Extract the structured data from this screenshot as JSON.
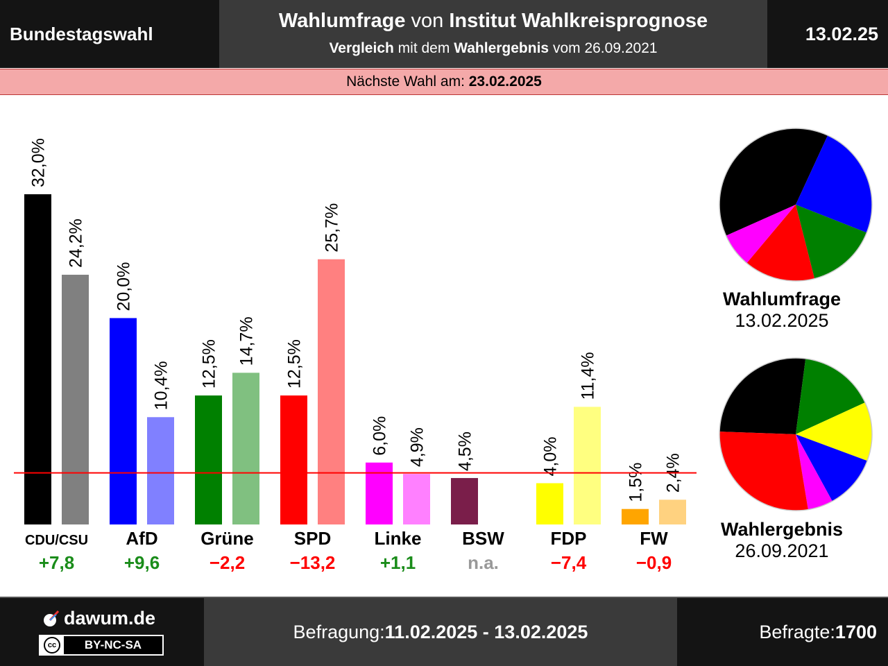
{
  "header": {
    "left": "Bundestagswahl",
    "title_bold1": "Wahlumfrage",
    "title_mid": " von ",
    "title_bold2": "Institut Wahlkreisprognose",
    "sub_bold1": "Vergleich",
    "sub_mid": " mit dem ",
    "sub_bold2": "Wahlergebnis",
    "sub_end": " vom 26.09.2021",
    "date": "13.02.25"
  },
  "next_election": {
    "label": "Nächste Wahl am: ",
    "date": "23.02.2025"
  },
  "pies": [
    {
      "title": "Wahlumfrage",
      "date": "13.02.2025"
    },
    {
      "title": "Wahlergebnis",
      "date": "26.09.2021"
    }
  ],
  "footer": {
    "brand": "dawum.de",
    "license": "BY-NC-SA",
    "cc_symbol": "cc",
    "period_label": "Befragung: ",
    "period": "11.02.2025 - 13.02.2025",
    "respondents_label": "Befragte: ",
    "respondents": "1700"
  },
  "chart_data": {
    "type": "bar",
    "categories": [
      "CDU/CSU",
      "AfD",
      "Grüne",
      "SPD",
      "Linke",
      "BSW",
      "FDP",
      "FW"
    ],
    "series": [
      {
        "values": [
          32.0,
          20.0,
          12.5,
          12.5,
          6.0,
          4.5,
          4.0,
          1.5
        ]
      },
      {
        "values": [
          24.2,
          10.4,
          14.7,
          25.7,
          4.9,
          null,
          11.4,
          2.4
        ]
      }
    ],
    "poll_labels": [
      "32,0%",
      "20,0%",
      "12,5%",
      "12,5%",
      "6,0%",
      "4,5%",
      "4,0%",
      "1,5%"
    ],
    "result_labels": [
      "24,2%",
      "10,4%",
      "14,7%",
      "25,7%",
      "4,9%",
      "",
      "11,4%",
      "2,4%"
    ],
    "changes": [
      "+7,8",
      "+9,6",
      "−2,2",
      "−13,2",
      "+1,1",
      "n.a.",
      "−7,4",
      "−0,9"
    ],
    "change_colors": [
      "#1a8c1a",
      "#1a8c1a",
      "#ff0000",
      "#ff0000",
      "#1a8c1a",
      "#999999",
      "#ff0000",
      "#ff0000"
    ],
    "poll_colors": [
      "#000000",
      "#0000ff",
      "#008000",
      "#ff0000",
      "#ff00ff",
      "#7a1e4a",
      "#ffff00",
      "#ffa500"
    ],
    "result_colors": [
      "#808080",
      "#8080ff",
      "#80c080",
      "#ff8080",
      "#ff80ff",
      "#bc8fa5",
      "#ffff80",
      "#ffd280"
    ],
    "threshold": 5,
    "threshold_color": "#ff0000",
    "ylim": [
      0,
      32
    ],
    "pie_poll_order": [
      {
        "value": 32.0,
        "color": "#000000"
      },
      {
        "value": 20.0,
        "color": "#0000ff"
      },
      {
        "value": 12.5,
        "color": "#008000"
      },
      {
        "value": 12.5,
        "color": "#ff0000"
      },
      {
        "value": 6.0,
        "color": "#ff00ff"
      }
    ],
    "pie_result_order": [
      {
        "value": 24.2,
        "color": "#000000"
      },
      {
        "value": 14.7,
        "color": "#008000"
      },
      {
        "value": 11.4,
        "color": "#ffff00"
      },
      {
        "value": 10.4,
        "color": "#0000ff"
      },
      {
        "value": 4.9,
        "color": "#ff00ff"
      },
      {
        "value": 25.7,
        "color": "#ff0000"
      }
    ]
  }
}
